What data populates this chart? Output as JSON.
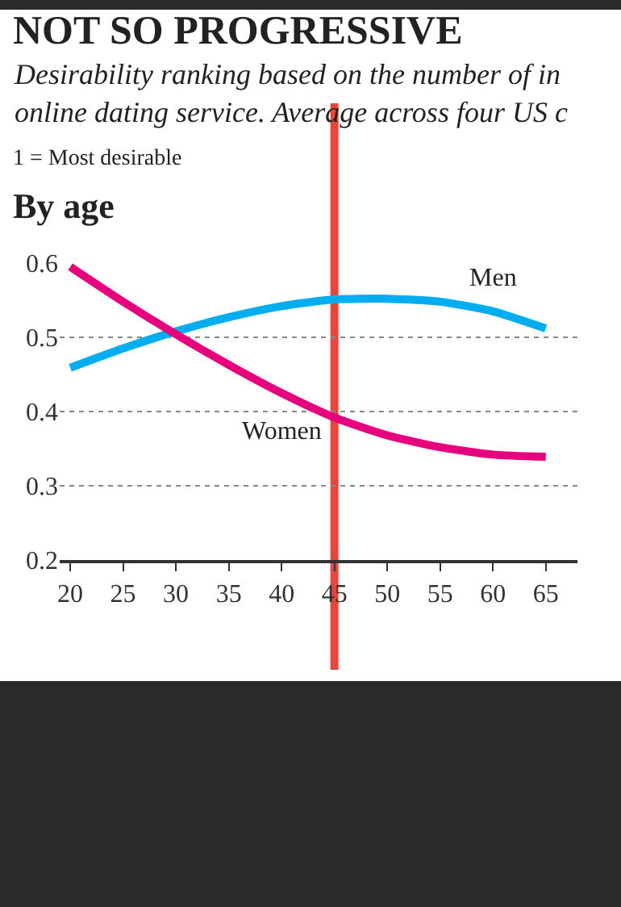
{
  "chart_data": {
    "type": "line",
    "title": "NOT SO PROGRESSIVE",
    "subtitle": "Desirability ranking based on the number of in\nonline dating service. Average across four US c",
    "annotations": [
      "1 = Most desirable",
      "By age"
    ],
    "x": [
      20,
      25,
      30,
      35,
      40,
      45,
      50,
      55,
      60,
      65
    ],
    "series": [
      {
        "name": "Men",
        "color": "#00aeef",
        "values": [
          0.459,
          0.485,
          0.508,
          0.527,
          0.542,
          0.551,
          0.552,
          0.548,
          0.535,
          0.512
        ]
      },
      {
        "name": "Women",
        "color": "#e6007e",
        "values": [
          0.595,
          0.548,
          0.504,
          0.463,
          0.425,
          0.392,
          0.368,
          0.352,
          0.342,
          0.339
        ]
      }
    ],
    "xlim": [
      19,
      68
    ],
    "xticks": [
      20,
      25,
      30,
      35,
      40,
      45,
      50,
      55,
      60,
      65
    ],
    "ylim": [
      0.2,
      0.6
    ],
    "yticks": [
      0.2,
      0.3,
      0.4,
      0.5,
      0.6
    ],
    "grid": "y",
    "legend": false,
    "marker": "none",
    "line_style": "solid",
    "ref_lines": [
      {
        "axis": "x",
        "value": 45,
        "color": "#e8463a"
      }
    ]
  }
}
